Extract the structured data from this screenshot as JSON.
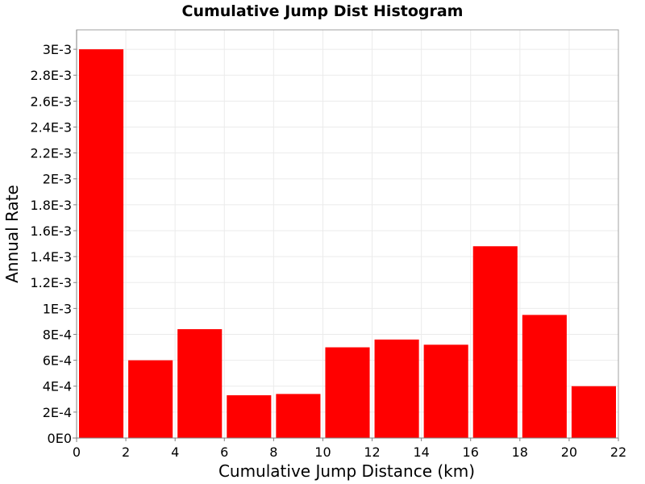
{
  "chart_data": {
    "type": "bar",
    "title": "Cumulative Jump Dist Histogram",
    "xlabel": "Cumulative Jump Distance (km)",
    "ylabel": "Annual Rate",
    "bar_color": "#ff0000",
    "bin_width": 2,
    "x": [
      1,
      3,
      5,
      7,
      9,
      11,
      13,
      15,
      17,
      19,
      21
    ],
    "values": [
      0.003,
      0.0006,
      0.00084,
      0.00033,
      0.00034,
      0.0007,
      0.00076,
      0.00072,
      0.00148,
      0.00095,
      0.0004
    ],
    "xlim": [
      0,
      22
    ],
    "ylim": [
      0,
      0.00315
    ],
    "x_ticks": [
      0,
      2,
      4,
      6,
      8,
      10,
      12,
      14,
      16,
      18,
      20,
      22
    ],
    "x_tick_labels": [
      "0",
      "2",
      "4",
      "6",
      "8",
      "10",
      "12",
      "14",
      "16",
      "18",
      "20",
      "22"
    ],
    "y_ticks": [
      0,
      0.0002,
      0.0004,
      0.0006,
      0.0008,
      0.001,
      0.0012,
      0.0014,
      0.0016,
      0.0018,
      0.002,
      0.0022,
      0.0024,
      0.0026,
      0.0028,
      0.003
    ],
    "y_tick_labels": [
      "0E0",
      "2E-4",
      "4E-4",
      "6E-4",
      "8E-4",
      "1E-3",
      "1.2E-3",
      "1.4E-3",
      "1.6E-3",
      "1.8E-3",
      "2E-3",
      "2.2E-3",
      "2.4E-3",
      "2.6E-3",
      "2.8E-3",
      "3E-3"
    ],
    "grid": true,
    "legend": "none"
  }
}
